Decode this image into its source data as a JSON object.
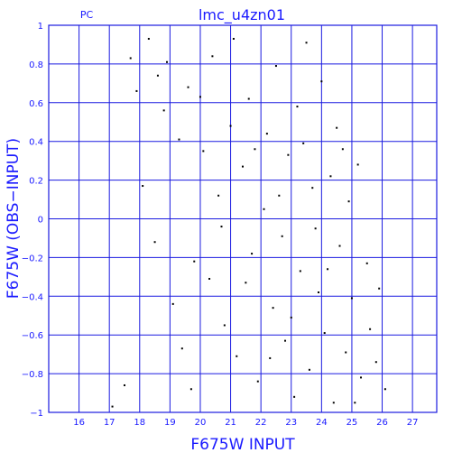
{
  "chart_data": {
    "type": "scatter",
    "title": "lmc_u4zn01",
    "detector_label": "PC",
    "xlabel": "F675W INPUT",
    "ylabel": "F675W (OBS−INPUT)",
    "xlim": [
      15,
      27.8
    ],
    "ylim": [
      -1,
      1
    ],
    "x_ticks": [
      "16",
      "17",
      "18",
      "19",
      "20",
      "21",
      "22",
      "23",
      "24",
      "25",
      "26",
      "27"
    ],
    "y_ticks": [
      "1",
      "0.8",
      "0.6",
      "0.4",
      "0.2",
      "0",
      "−0.2",
      "−0.4",
      "−0.6",
      "−0.8",
      "−1"
    ],
    "grid": true,
    "point_color": "#000000",
    "secondary_point_color": "#e6d200",
    "series": [
      {
        "values": [
          [
            17.7,
            0.83
          ],
          [
            17.9,
            0.66
          ],
          [
            18.3,
            0.93
          ],
          [
            18.6,
            0.74
          ],
          [
            18.9,
            0.81
          ],
          [
            19.3,
            0.41
          ],
          [
            19.6,
            0.68
          ],
          [
            19.8,
            -0.22
          ],
          [
            20.1,
            0.35
          ],
          [
            20.3,
            -0.31
          ],
          [
            20.6,
            0.12
          ],
          [
            20.8,
            -0.55
          ],
          [
            21.0,
            0.48
          ],
          [
            21.2,
            -0.71
          ],
          [
            21.4,
            0.27
          ],
          [
            21.6,
            0.62
          ],
          [
            21.7,
            -0.18
          ],
          [
            21.9,
            -0.84
          ],
          [
            22.1,
            0.05
          ],
          [
            22.2,
            0.44
          ],
          [
            22.4,
            -0.46
          ],
          [
            22.5,
            0.79
          ],
          [
            22.7,
            -0.09
          ],
          [
            22.8,
            -0.63
          ],
          [
            22.9,
            0.33
          ],
          [
            23.1,
            -0.92
          ],
          [
            23.2,
            0.58
          ],
          [
            23.3,
            -0.27
          ],
          [
            23.5,
            0.91
          ],
          [
            23.6,
            -0.78
          ],
          [
            23.7,
            0.16
          ],
          [
            23.9,
            -0.38
          ],
          [
            24.0,
            0.71
          ],
          [
            24.1,
            -0.59
          ],
          [
            24.3,
            0.22
          ],
          [
            24.4,
            -0.95
          ],
          [
            24.5,
            0.47
          ],
          [
            24.6,
            -0.14
          ],
          [
            24.8,
            -0.69
          ],
          [
            24.9,
            0.09
          ],
          [
            25.0,
            -0.41
          ],
          [
            25.2,
            0.28
          ],
          [
            25.3,
            -0.82
          ],
          [
            25.5,
            -0.23
          ],
          [
            25.6,
            -0.57
          ],
          [
            25.8,
            -0.74
          ],
          [
            25.9,
            -0.36
          ],
          [
            26.1,
            -0.88
          ],
          [
            17.5,
            -0.86
          ],
          [
            17.1,
            -0.97
          ],
          [
            18.1,
            0.17
          ],
          [
            18.5,
            -0.12
          ],
          [
            18.8,
            0.56
          ],
          [
            19.1,
            -0.44
          ],
          [
            19.4,
            -0.67
          ],
          [
            19.7,
            -0.88
          ],
          [
            20.0,
            0.63
          ],
          [
            20.4,
            0.84
          ],
          [
            20.7,
            -0.04
          ],
          [
            21.1,
            0.93
          ],
          [
            21.5,
            -0.33
          ],
          [
            21.8,
            0.36
          ],
          [
            22.3,
            -0.72
          ],
          [
            22.6,
            0.12
          ],
          [
            23.0,
            -0.51
          ],
          [
            23.4,
            0.39
          ],
          [
            23.8,
            -0.05
          ],
          [
            24.2,
            -0.26
          ],
          [
            24.7,
            0.36
          ],
          [
            25.1,
            -0.95
          ]
        ]
      }
    ]
  }
}
